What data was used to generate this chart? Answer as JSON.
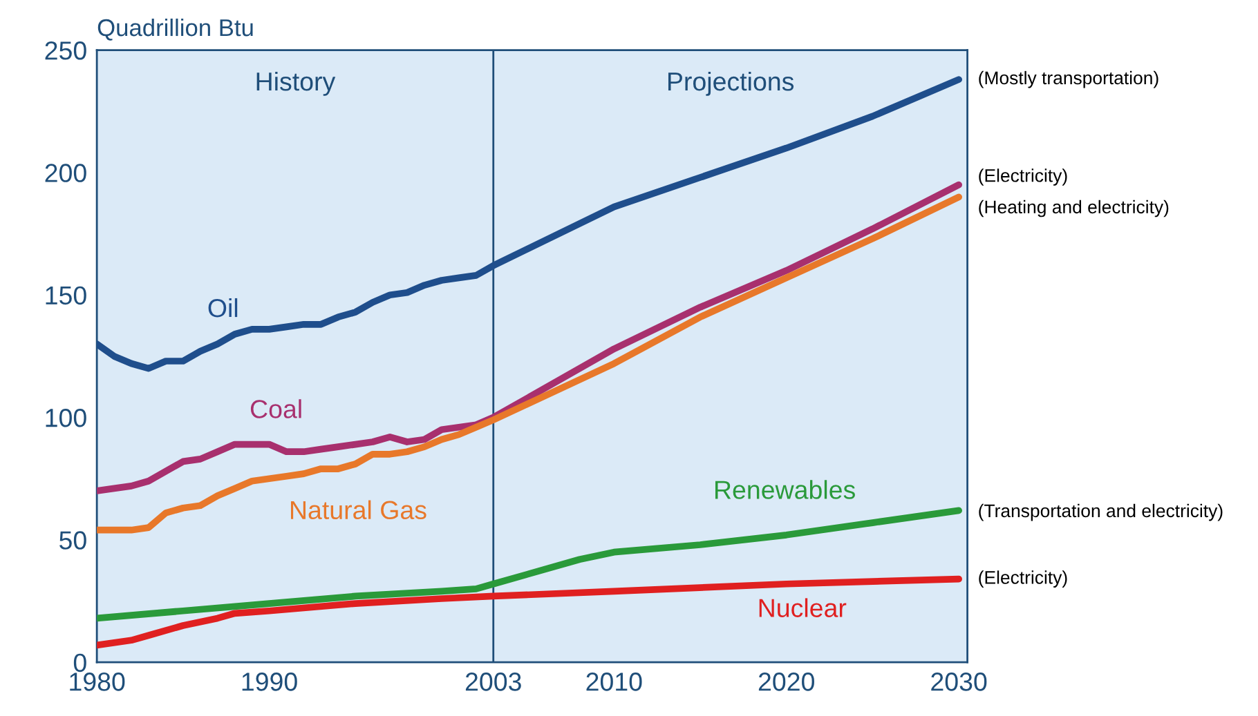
{
  "chart_data": {
    "type": "line",
    "ylabel": "Quadrillion Btu",
    "xlim": [
      1980,
      2030.5
    ],
    "xticks": [
      1980,
      1990,
      2003,
      2010,
      2020,
      2030
    ],
    "ylim": [
      0,
      250
    ],
    "yticks": [
      0,
      50,
      100,
      150,
      200,
      250
    ],
    "grid": false,
    "legend": false,
    "marker": "none",
    "line_style": "solid",
    "ref_lines": [
      {
        "axis": "x",
        "value": 2003,
        "label": null,
        "color": "#1f4e79"
      }
    ],
    "annotations": [
      "History",
      "Projections",
      "(Mostly transportation)",
      "(Electricity)",
      "(Heating and electricity)",
      "(Transportation and electricity)",
      "(Electricity)"
    ],
    "series": [
      {
        "name": "Oil",
        "color": "#1f4e8c",
        "x": [
          1980,
          1981,
          1982,
          1983,
          1984,
          1985,
          1986,
          1987,
          1988,
          1989,
          1990,
          1991,
          1992,
          1993,
          1994,
          1995,
          1996,
          1997,
          1998,
          1999,
          2000,
          2001,
          2002,
          2003,
          2010,
          2015,
          2020,
          2025,
          2030
        ],
        "values": [
          130,
          125,
          122,
          120,
          123,
          123,
          127,
          130,
          134,
          136,
          136,
          137,
          138,
          138,
          141,
          143,
          147,
          150,
          151,
          154,
          156,
          157,
          158,
          162,
          186,
          198,
          210,
          223,
          238
        ]
      },
      {
        "name": "Coal",
        "color": "#a8306e",
        "x": [
          1980,
          1981,
          1982,
          1983,
          1984,
          1985,
          1986,
          1987,
          1988,
          1989,
          1990,
          1991,
          1992,
          1993,
          1994,
          1995,
          1996,
          1997,
          1998,
          1999,
          2000,
          2001,
          2002,
          2003,
          2010,
          2015,
          2020,
          2025,
          2030
        ],
        "values": [
          70,
          71,
          72,
          74,
          78,
          82,
          83,
          86,
          89,
          89,
          89,
          86,
          86,
          87,
          88,
          89,
          90,
          92,
          90,
          91,
          95,
          96,
          97,
          100,
          128,
          145,
          160,
          177,
          195
        ]
      },
      {
        "name": "Natural Gas",
        "color": "#e8782a",
        "x": [
          1980,
          1981,
          1982,
          1983,
          1984,
          1985,
          1986,
          1987,
          1988,
          1989,
          1990,
          1991,
          1992,
          1993,
          1994,
          1995,
          1996,
          1997,
          1998,
          1999,
          2000,
          2001,
          2002,
          2003,
          2010,
          2015,
          2020,
          2025,
          2030
        ],
        "values": [
          54,
          54,
          54,
          55,
          61,
          63,
          64,
          68,
          71,
          74,
          75,
          76,
          77,
          79,
          79,
          81,
          85,
          85,
          86,
          88,
          91,
          93,
          96,
          99,
          122,
          141,
          157,
          173,
          190
        ]
      },
      {
        "name": "Renewables",
        "color": "#2a9a3a",
        "x": [
          1980,
          1985,
          1990,
          1995,
          2000,
          2002,
          2003,
          2008,
          2010,
          2015,
          2020,
          2025,
          2030
        ],
        "values": [
          18,
          21,
          24,
          27,
          29,
          30,
          32,
          42,
          45,
          48,
          52,
          57,
          62
        ]
      },
      {
        "name": "Nuclear",
        "color": "#e02020",
        "x": [
          1980,
          1982,
          1983,
          1985,
          1987,
          1988,
          1990,
          1995,
          2000,
          2003,
          2010,
          2020,
          2030
        ],
        "values": [
          7,
          9,
          11,
          15,
          18,
          20,
          21,
          24,
          26,
          27,
          29,
          32,
          34
        ]
      }
    ]
  }
}
